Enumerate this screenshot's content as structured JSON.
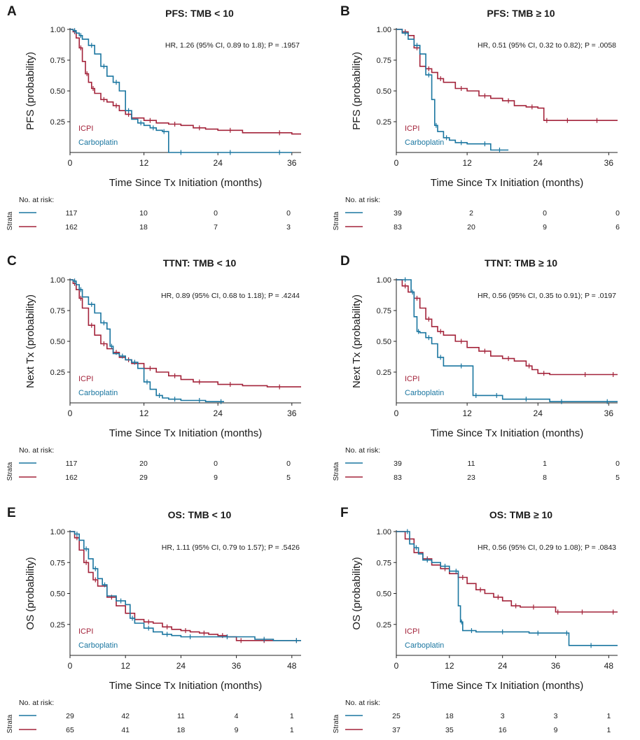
{
  "colors": {
    "icpi": "#a3233a",
    "carboplatin": "#1a76a0"
  },
  "risk_header": "No. at risk:",
  "strata_label": "Strata",
  "chart_data": [
    {
      "id": "A",
      "panel_label": "A",
      "type": "line",
      "title": "PFS: TMB < 10",
      "xlabel": "Time Since Tx Initiation (months)",
      "ylabel": "PFS (probability)",
      "xlim": [
        0,
        37.5
      ],
      "ylim": [
        0,
        1.0
      ],
      "xticks": [
        "0",
        "12",
        "24",
        "36"
      ],
      "yticks": [
        "0.25",
        "0.50",
        "0.75",
        "1.00"
      ],
      "annotation": "HR, 1.26 (95% CI, 0.89 to 1.8); P = .1957",
      "legend": [
        "ICPI",
        "Carboplatin"
      ],
      "risk": {
        "times": [
          "0",
          "12",
          "24",
          "36"
        ],
        "carboplatin": [
          "117",
          "10",
          "0",
          "0"
        ],
        "icpi": [
          "162",
          "18",
          "7",
          "3"
        ]
      },
      "series": [
        {
          "name": "ICPI",
          "x": [
            0,
            0.5,
            1,
            1.5,
            2,
            2.5,
            3,
            3.5,
            4,
            5,
            6,
            7,
            8,
            9,
            10,
            12,
            14,
            16,
            18,
            20,
            22,
            24,
            28,
            32,
            36,
            37.5
          ],
          "y": [
            1,
            0.98,
            0.93,
            0.85,
            0.74,
            0.64,
            0.57,
            0.52,
            0.48,
            0.43,
            0.41,
            0.38,
            0.34,
            0.31,
            0.28,
            0.26,
            0.24,
            0.23,
            0.22,
            0.2,
            0.19,
            0.18,
            0.16,
            0.16,
            0.15,
            0.15
          ]
        },
        {
          "name": "Carboplatin",
          "x": [
            0,
            0.5,
            1,
            1.5,
            2,
            3,
            4,
            5,
            6,
            7,
            8,
            9,
            10,
            11,
            12,
            13,
            14,
            15,
            15.5,
            16,
            20,
            24,
            28,
            32,
            36
          ],
          "y": [
            1,
            0.99,
            0.97,
            0.95,
            0.92,
            0.87,
            0.8,
            0.7,
            0.62,
            0.57,
            0.5,
            0.34,
            0.27,
            0.24,
            0.22,
            0.2,
            0.18,
            0.17,
            0.17,
            0,
            0,
            0,
            0,
            0,
            0
          ]
        }
      ]
    },
    {
      "id": "B",
      "panel_label": "B",
      "type": "line",
      "title": "PFS: TMB ≥ 10",
      "xlabel": "Time Since Tx Initiation (months)",
      "ylabel": "PFS (probability)",
      "xlim": [
        0,
        37.5
      ],
      "ylim": [
        0,
        1.0
      ],
      "xticks": [
        "0",
        "12",
        "24",
        "36"
      ],
      "yticks": [
        "0.25",
        "0.50",
        "0.75",
        "1.00"
      ],
      "annotation": "HR, 0.51 (95% CI, 0.32 to 0.82); P = .0058",
      "legend": [
        "ICPI",
        "Carboplatin"
      ],
      "risk": {
        "times": [
          "0",
          "12",
          "24",
          "36"
        ],
        "carboplatin": [
          "39",
          "2",
          "0",
          "0"
        ],
        "icpi": [
          "83",
          "20",
          "9",
          "6"
        ]
      },
      "series": [
        {
          "name": "ICPI",
          "x": [
            0,
            1,
            2,
            3,
            4,
            5,
            6,
            7,
            8,
            10,
            12,
            14,
            16,
            18,
            20,
            22,
            24,
            25,
            26,
            28,
            30,
            32,
            36,
            37.5
          ],
          "y": [
            1,
            0.98,
            0.95,
            0.85,
            0.7,
            0.68,
            0.65,
            0.6,
            0.57,
            0.52,
            0.5,
            0.46,
            0.44,
            0.42,
            0.38,
            0.37,
            0.36,
            0.26,
            0.26,
            0.26,
            0.26,
            0.26,
            0.26,
            0.26
          ]
        },
        {
          "name": "Carboplatin",
          "x": [
            0,
            1,
            2,
            3,
            4,
            5,
            6,
            6.5,
            7,
            8,
            9,
            10,
            12,
            14,
            16,
            17,
            18,
            19
          ],
          "y": [
            1,
            0.97,
            0.92,
            0.87,
            0.8,
            0.63,
            0.43,
            0.22,
            0.17,
            0.12,
            0.1,
            0.08,
            0.07,
            0.07,
            0.02,
            0.02,
            0.02,
            0.02
          ]
        }
      ]
    },
    {
      "id": "C",
      "panel_label": "C",
      "type": "line",
      "title": "TTNT: TMB < 10",
      "xlabel": "Time Since Tx Initiation (months)",
      "ylabel": "Next Tx (probability)",
      "xlim": [
        0,
        37.5
      ],
      "ylim": [
        0,
        1.0
      ],
      "xticks": [
        "0",
        "12",
        "24",
        "36"
      ],
      "yticks": [
        "0.25",
        "0.50",
        "0.75",
        "1.00"
      ],
      "annotation": "HR, 0.89 (95% CI, 0.68 to 1.18); P = .4244",
      "legend": [
        "ICPI",
        "Carboplatin"
      ],
      "risk": {
        "times": [
          "0",
          "12",
          "24",
          "36"
        ],
        "carboplatin": [
          "117",
          "20",
          "0",
          "0"
        ],
        "icpi": [
          "162",
          "29",
          "9",
          "5"
        ]
      },
      "series": [
        {
          "name": "ICPI",
          "x": [
            0,
            0.5,
            1,
            1.5,
            2,
            3,
            4,
            5,
            6,
            7,
            8,
            9,
            10,
            12,
            14,
            16,
            18,
            20,
            22,
            24,
            28,
            32,
            36,
            37.5
          ],
          "y": [
            1,
            0.97,
            0.92,
            0.85,
            0.77,
            0.63,
            0.55,
            0.48,
            0.44,
            0.41,
            0.37,
            0.35,
            0.32,
            0.28,
            0.25,
            0.22,
            0.19,
            0.17,
            0.17,
            0.15,
            0.14,
            0.13,
            0.13,
            0.13
          ]
        },
        {
          "name": "Carboplatin",
          "x": [
            0,
            0.5,
            1,
            1.5,
            2,
            3,
            4,
            5,
            6,
            6.5,
            7,
            8,
            9,
            10,
            11,
            12,
            13,
            14,
            15,
            16,
            18,
            20,
            22,
            24,
            25
          ],
          "y": [
            1,
            0.99,
            0.96,
            0.92,
            0.86,
            0.8,
            0.73,
            0.65,
            0.6,
            0.46,
            0.4,
            0.38,
            0.35,
            0.33,
            0.28,
            0.17,
            0.11,
            0.06,
            0.04,
            0.03,
            0.02,
            0.02,
            0.01,
            0.01,
            0.01
          ]
        }
      ]
    },
    {
      "id": "D",
      "panel_label": "D",
      "type": "line",
      "title": "TTNT: TMB ≥ 10",
      "xlabel": "Time Since Tx Initiation (months)",
      "ylabel": "Next Tx (probability)",
      "xlim": [
        0,
        37.5
      ],
      "ylim": [
        0,
        1.0
      ],
      "xticks": [
        "0",
        "12",
        "24",
        "36"
      ],
      "yticks": [
        "0.25",
        "0.50",
        "0.75",
        "1.00"
      ],
      "annotation": "HR, 0.56 (95% CI, 0.35 to 0.91); P = .0197",
      "legend": [
        "ICPI",
        "Carboplatin"
      ],
      "risk": {
        "times": [
          "0",
          "12",
          "24",
          "36"
        ],
        "carboplatin": [
          "39",
          "11",
          "1",
          "0"
        ],
        "icpi": [
          "83",
          "23",
          "8",
          "5"
        ]
      },
      "series": [
        {
          "name": "ICPI",
          "x": [
            0,
            1,
            2,
            3,
            4,
            5,
            6,
            7,
            8,
            10,
            12,
            14,
            16,
            18,
            20,
            22,
            23,
            24,
            26,
            30,
            34,
            36,
            37.5
          ],
          "y": [
            1,
            0.95,
            0.9,
            0.85,
            0.77,
            0.68,
            0.62,
            0.58,
            0.55,
            0.5,
            0.45,
            0.42,
            0.38,
            0.36,
            0.34,
            0.3,
            0.27,
            0.24,
            0.23,
            0.23,
            0.23,
            0.23,
            0.23
          ]
        },
        {
          "name": "Carboplatin",
          "x": [
            0,
            1,
            2,
            2.5,
            3,
            3.5,
            4,
            5,
            6,
            7,
            8,
            10,
            12,
            13,
            14,
            16,
            18,
            20,
            24,
            26,
            30,
            34,
            37.5
          ],
          "y": [
            1,
            1,
            1,
            0.9,
            0.7,
            0.58,
            0.57,
            0.53,
            0.48,
            0.37,
            0.3,
            0.3,
            0.3,
            0.06,
            0.06,
            0.06,
            0.03,
            0.03,
            0.03,
            0.01,
            0.01,
            0.01,
            0.01
          ]
        }
      ]
    },
    {
      "id": "E",
      "panel_label": "E",
      "type": "line",
      "title": "OS: TMB < 10",
      "xlabel": "Time Since Tx Initiation (months)",
      "ylabel": "OS (probability)",
      "xlim": [
        0,
        50
      ],
      "ylim": [
        0,
        1.0
      ],
      "xticks": [
        "0",
        "12",
        "24",
        "36",
        "48"
      ],
      "yticks": [
        "0.25",
        "0.50",
        "0.75",
        "1.00"
      ],
      "annotation": "HR, 1.11 (95% CI, 0.79 to 1.57); P = .5426",
      "legend": [
        "ICPI",
        "Carboplatin"
      ],
      "risk": {
        "times": [
          "0",
          "12",
          "24",
          "36",
          "48"
        ],
        "carboplatin": [
          "29",
          "42",
          "11",
          "4",
          "1"
        ],
        "icpi": [
          "65",
          "41",
          "18",
          "9",
          "1"
        ]
      },
      "series": [
        {
          "name": "ICPI",
          "x": [
            0,
            1,
            2,
            3,
            4,
            5,
            6,
            8,
            10,
            12,
            14,
            16,
            18,
            20,
            22,
            24,
            26,
            28,
            30,
            32,
            34,
            36,
            38,
            40,
            44,
            48,
            50
          ],
          "y": [
            1,
            0.95,
            0.85,
            0.75,
            0.67,
            0.61,
            0.56,
            0.47,
            0.4,
            0.34,
            0.29,
            0.27,
            0.26,
            0.23,
            0.21,
            0.2,
            0.19,
            0.18,
            0.17,
            0.16,
            0.15,
            0.12,
            0.12,
            0.12,
            0.12,
            0.12,
            0.12
          ]
        },
        {
          "name": "Carboplatin",
          "x": [
            0,
            1,
            2,
            3,
            4,
            5,
            6,
            7,
            8,
            10,
            12,
            13,
            14,
            16,
            18,
            20,
            22,
            24,
            28,
            32,
            36,
            40,
            44,
            48,
            50
          ],
          "y": [
            1,
            0.98,
            0.93,
            0.86,
            0.78,
            0.7,
            0.62,
            0.57,
            0.48,
            0.44,
            0.41,
            0.3,
            0.26,
            0.22,
            0.19,
            0.17,
            0.16,
            0.15,
            0.15,
            0.15,
            0.15,
            0.13,
            0.12,
            0.12,
            0.12
          ]
        }
      ]
    },
    {
      "id": "F",
      "panel_label": "F",
      "type": "line",
      "title": "OS: TMB ≥ 10",
      "xlabel": "Time Since Tx Initiation (months)",
      "ylabel": "OS (probability)",
      "xlim": [
        0,
        50
      ],
      "ylim": [
        0,
        1.0
      ],
      "xticks": [
        "0",
        "12",
        "24",
        "36",
        "48"
      ],
      "yticks": [
        "0.25",
        "0.50",
        "0.75",
        "1.00"
      ],
      "annotation": "HR, 0.56 (95% CI, 0.29 to 1.08); P = .0843",
      "legend": [
        "ICPI",
        "Carboplatin"
      ],
      "risk": {
        "times": [
          "0",
          "12",
          "24",
          "36",
          "48"
        ],
        "carboplatin": [
          "25",
          "18",
          "3",
          "3",
          "1"
        ],
        "icpi": [
          "37",
          "35",
          "16",
          "9",
          "1"
        ]
      },
      "series": [
        {
          "name": "ICPI",
          "x": [
            0,
            2,
            4,
            6,
            8,
            10,
            12,
            14,
            16,
            18,
            20,
            22,
            24,
            26,
            28,
            30,
            32,
            36,
            37,
            40,
            44,
            48,
            50
          ],
          "y": [
            1,
            0.94,
            0.83,
            0.78,
            0.73,
            0.7,
            0.66,
            0.63,
            0.58,
            0.53,
            0.5,
            0.47,
            0.44,
            0.4,
            0.39,
            0.39,
            0.39,
            0.35,
            0.35,
            0.35,
            0.35,
            0.35,
            0.35
          ]
        },
        {
          "name": "Carboplatin",
          "x": [
            0,
            2,
            3,
            4,
            5,
            6,
            8,
            10,
            12,
            13,
            14,
            14.5,
            15,
            16,
            18,
            22,
            26,
            30,
            34,
            38,
            39,
            42,
            46,
            50
          ],
          "y": [
            1,
            1,
            0.9,
            0.87,
            0.82,
            0.77,
            0.75,
            0.72,
            0.68,
            0.68,
            0.4,
            0.27,
            0.2,
            0.2,
            0.19,
            0.19,
            0.19,
            0.18,
            0.18,
            0.18,
            0.08,
            0.08,
            0.08,
            0.08
          ]
        }
      ]
    }
  ]
}
